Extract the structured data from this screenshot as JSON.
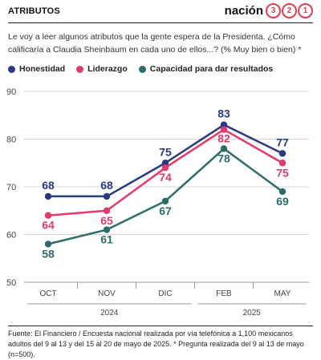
{
  "header": {
    "title": "ATRIBUTOS",
    "brand_word": "nación",
    "brand_digits": [
      "3",
      "2",
      "1"
    ]
  },
  "subtitle": "Le voy a leer algunos atributos que la gente espera de la Presidenta. ¿Cómo calificaría a Claudia Sheinbaum en cada uno de ellos...? (% Muy bien o bien) *",
  "colors": {
    "honestidad": "#2a3a82",
    "liderazgo": "#e23a6a",
    "capacidad": "#2e6b6b",
    "grid": "#d6d6d6"
  },
  "chart_data": {
    "type": "line",
    "categories": [
      "OCT",
      "NOV",
      "DIC",
      "FEB",
      "MAY"
    ],
    "year_groups": [
      {
        "label": "2024",
        "categories": [
          "OCT",
          "NOV",
          "DIC"
        ]
      },
      {
        "label": "2025",
        "categories": [
          "FEB",
          "MAY"
        ]
      }
    ],
    "yticks": [
      "50",
      "60",
      "70",
      "80",
      "90"
    ],
    "ylim": [
      50,
      90
    ],
    "grid": true,
    "legend_position": "top-left",
    "series": [
      {
        "name": "Honestidad",
        "color": "#2a3a82",
        "values": [
          68,
          68,
          75,
          83,
          77
        ]
      },
      {
        "name": "Liderazgo",
        "color": "#e23a6a",
        "values": [
          64,
          65,
          74,
          82,
          75
        ]
      },
      {
        "name": "Capacidad para dar resultados",
        "color": "#2e6b6b",
        "values": [
          58,
          61,
          67,
          78,
          69
        ]
      }
    ]
  },
  "source": "Fuente: El Financiero / Encuesta nacional realizada por vía telefónica a 1,100 mexicanos adultos del 9 al 13 y del 15 al 20 de mayo de 2025. * Pregunta realizada del 9 al 13 de mayo (n=500)."
}
